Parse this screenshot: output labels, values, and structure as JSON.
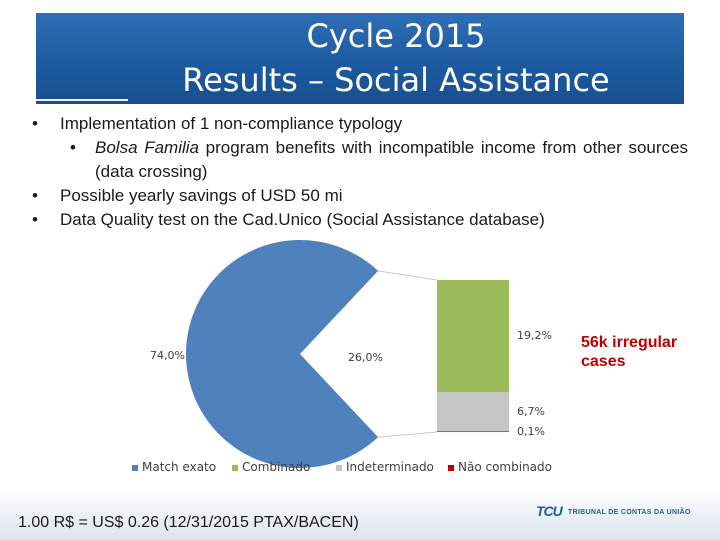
{
  "header": {
    "title_line1": "Cycle 2015",
    "title_line2": "Results – Social Assistance"
  },
  "bullets": {
    "b1": "Implementation of 1 non-compliance typology",
    "b1_sub_em": "Bolsa Familia",
    "b1_sub_rest": " program benefits with incompatible income from other sources (data crossing)",
    "b2": "Possible yearly savings of USD 50 mi",
    "b3": "Data Quality test on the Cad.Unico (Social Assistance database)",
    "marker": "•"
  },
  "chart_data": {
    "type": "bar-of-pie",
    "pie": {
      "slices": [
        {
          "label": "74,0%",
          "value": 74.0
        },
        {
          "label": "26,0%",
          "value": 26.0
        }
      ]
    },
    "bar": {
      "segments": [
        {
          "name": "Combinado",
          "label": "19,2%",
          "value": 19.2
        },
        {
          "name": "Indeterminado",
          "label": "6,7%",
          "value": 6.7
        },
        {
          "name": "Não combinado",
          "label": "0,1%",
          "value": 0.1
        }
      ]
    },
    "legend": [
      {
        "name": "Match exato",
        "color": "#4f81bd"
      },
      {
        "name": "Combinado",
        "color": "#9bbb59"
      },
      {
        "name": "Indeterminado",
        "color": "#c6c6c6"
      },
      {
        "name": "Não combinado",
        "color": "#c00000"
      }
    ],
    "legend_position": "bottom"
  },
  "callout": {
    "line1": "56k irregular",
    "line2": "cases"
  },
  "footer": {
    "text": "1.00 R$ = US$ 0.26 (12/31/2015 PTAX/BACEN)",
    "logo_mark": "TCU",
    "logo_text": "TRIBUNAL DE CONTAS DA UNIÃO"
  }
}
